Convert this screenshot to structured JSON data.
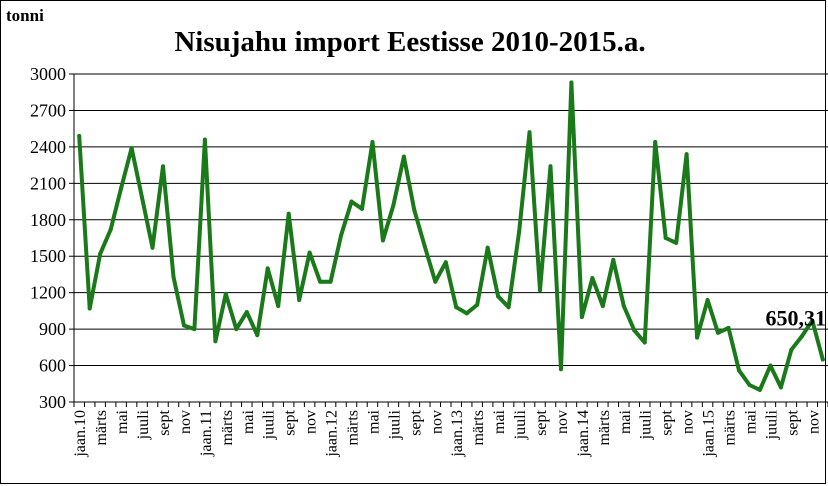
{
  "chart_data": {
    "type": "line",
    "title": "Nisujahu import Eestisse 2010-2015.a.",
    "ylabel": "tonni",
    "xlabel": "",
    "ylim": [
      300,
      3000
    ],
    "yticks": [
      300,
      600,
      900,
      1200,
      1500,
      1800,
      2100,
      2400,
      2700,
      3000
    ],
    "grid": true,
    "legend": "none",
    "series_color": "#1a7a1a",
    "x_tick_labels": [
      "jaan.10",
      "märts",
      "mai",
      "juuli",
      "sept",
      "nov",
      "jaan.11",
      "märts",
      "mai",
      "juuli",
      "sept",
      "nov",
      "jaan.12",
      "märts",
      "mai",
      "juuli",
      "sept",
      "nov",
      "jaan.13",
      "märts",
      "mai",
      "juuli",
      "sept",
      "nov",
      "jaan.14",
      "märts",
      "mai",
      "juuli",
      "sept",
      "nov",
      "jaan.15",
      "märts",
      "mai",
      "juuli",
      "sept",
      "nov"
    ],
    "series": [
      {
        "values": [
          2490,
          1070,
          1520,
          1720,
          2060,
          2390,
          1980,
          1570,
          2240,
          1330,
          930,
          900,
          2460,
          800,
          1190,
          900,
          1040,
          850,
          1400,
          1090,
          1850,
          1140,
          1530,
          1290,
          1290,
          1670,
          1950,
          1890,
          2440,
          1630,
          1920,
          2320,
          1880,
          1580,
          1290,
          1450,
          1080,
          1030,
          1100,
          1570,
          1170,
          1080,
          1700,
          2520,
          1220,
          2240,
          570,
          2930,
          1000,
          1320,
          1090,
          1470,
          1090,
          890,
          790,
          2440,
          1650,
          1610,
          2340,
          830,
          1140,
          870,
          910,
          560,
          440,
          400,
          600,
          420,
          730,
          840,
          970,
          650
        ]
      }
    ],
    "annotations": [
      {
        "text": "650,31",
        "x_index": 71,
        "value": 650.31
      }
    ]
  }
}
